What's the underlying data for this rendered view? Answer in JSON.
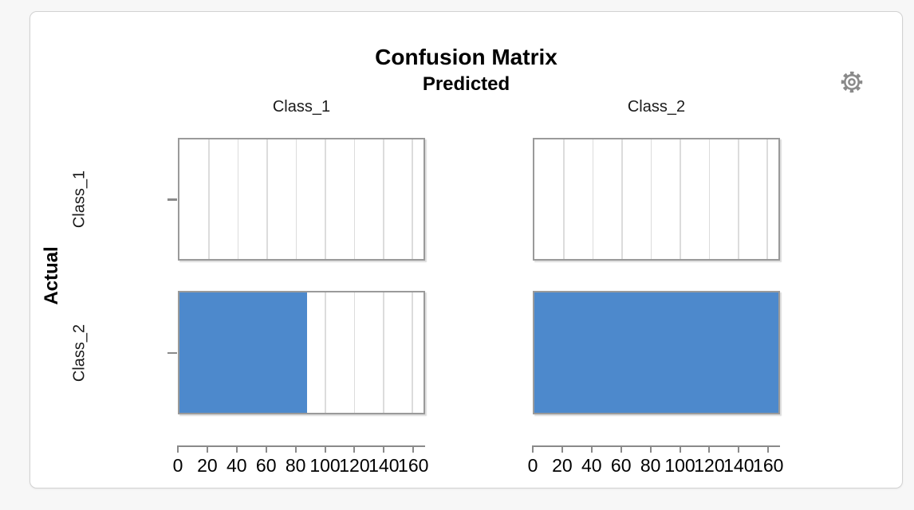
{
  "icons": {
    "settings": "gear-icon"
  },
  "chart_data": {
    "type": "bar",
    "orientation": "horizontal",
    "layout": "trellis-2x2",
    "title": "Confusion Matrix",
    "column_header": "Predicted",
    "row_header": "Actual",
    "columns": [
      "Class_1",
      "Class_2"
    ],
    "rows": [
      "Class_1",
      "Class_2"
    ],
    "matrix": [
      [
        0,
        0
      ],
      [
        88,
        168
      ]
    ],
    "xlim": [
      0,
      168
    ],
    "x_ticks": [
      0,
      20,
      40,
      60,
      80,
      100,
      120,
      140,
      160
    ],
    "grid": true,
    "legend": "none",
    "bar_color": "#4D89CC",
    "axis_color": "#8a8a8a",
    "grid_color": "#dcdcdc",
    "panel_border_color": "#9a9a9a",
    "text_color": "#1a1a1a"
  }
}
